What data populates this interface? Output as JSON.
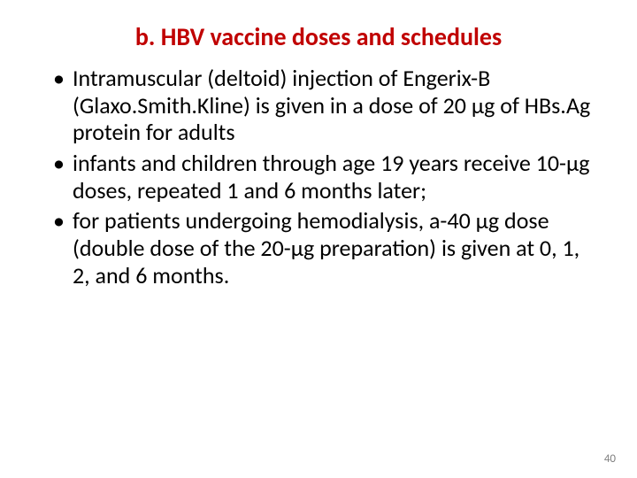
{
  "title": {
    "text": "b. HBV vaccine doses and schedules",
    "color": "#c00000",
    "fontsize": 28,
    "weight": 700
  },
  "bullets": {
    "color": "#000000",
    "fontsize": 26,
    "line_height": 1.18,
    "items": [
      "Intramuscular (deltoid) injection of Engerix-B (Glaxo.Smith.Kline) is given in a dose of 20 μg of HBs.Ag protein for adults",
      "infants and children through age 19 years receive 10-μg doses, repeated 1 and 6 months later;",
      "for patients undergoing hemodialysis, a-40 μg dose (double dose of the 20-μg preparation) is given at 0, 1, 2, and 6 months."
    ]
  },
  "page_number": {
    "value": "40",
    "color": "#7f7f7f",
    "fontsize": 13
  },
  "background": "#ffffff"
}
